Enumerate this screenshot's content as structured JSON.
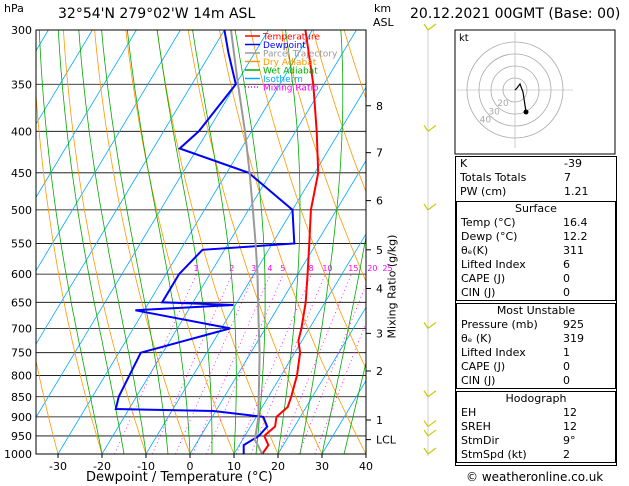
{
  "header": {
    "hpa_label": "hPa",
    "location": "32°54'N  279°02'W  14m  ASL",
    "km_label": "km",
    "asl_label": "ASL",
    "datetime": "20.12.2021  00GMT  (Base: 00)"
  },
  "footer": {
    "credit": "© weatheronline.co.uk"
  },
  "chart_data": {
    "type": "line",
    "title": "",
    "xlabel": "Dewpoint / Temperature (°C)",
    "ylabel": "hPa",
    "right_ylabel": "Mixing Ratio (g/kg)",
    "xlim": [
      -35,
      40
    ],
    "ylim": [
      1000,
      300
    ],
    "y_scale": "log",
    "x_ticks": [
      -30,
      -20,
      -10,
      0,
      10,
      20,
      30,
      40
    ],
    "pressure_levels": [
      300,
      350,
      400,
      450,
      500,
      550,
      600,
      650,
      700,
      750,
      800,
      850,
      900,
      950,
      1000
    ],
    "km_ticks": [
      {
        "label": "LCL",
        "p": 960
      },
      {
        "label": "1",
        "p": 908
      },
      {
        "label": "2",
        "p": 790
      },
      {
        "label": "3",
        "p": 710
      },
      {
        "label": "4",
        "p": 625
      },
      {
        "label": "5",
        "p": 560
      },
      {
        "label": "6",
        "p": 487
      },
      {
        "label": "7",
        "p": 425
      },
      {
        "label": "8",
        "p": 372
      }
    ],
    "mixing_ratio_labels": [
      "1",
      "2",
      "3",
      "4",
      "5",
      "8",
      "10",
      "15",
      "20",
      "25"
    ],
    "mixing_ratio_values": [
      1,
      2,
      3,
      4,
      5,
      8,
      10,
      15,
      20,
      25
    ],
    "legend": {
      "placement": "top-left",
      "entries": [
        {
          "name": "Temperature",
          "color": "#ff0000",
          "style": "solid"
        },
        {
          "name": "Dewpoint",
          "color": "#0000ff",
          "style": "solid"
        },
        {
          "name": "Parcel Trajectory",
          "color": "#999999",
          "style": "solid"
        },
        {
          "name": "Dry Adiabat",
          "color": "#ff9900",
          "style": "solid"
        },
        {
          "name": "Wet Adiabat",
          "color": "#00aa00",
          "style": "solid"
        },
        {
          "name": "Isotherm",
          "color": "#00aaff",
          "style": "solid"
        },
        {
          "name": "Mixing Ratio",
          "color": "#ff00ff",
          "style": "dotted"
        }
      ]
    },
    "series": [
      {
        "name": "Temperature",
        "color": "#ff0000",
        "points": [
          [
            1000,
            16.4
          ],
          [
            975,
            16.6
          ],
          [
            950,
            14.4
          ],
          [
            925,
            15.6
          ],
          [
            900,
            14.6
          ],
          [
            875,
            15.8
          ],
          [
            850,
            15.2
          ],
          [
            800,
            13.6
          ],
          [
            750,
            11.2
          ],
          [
            725,
            9.2
          ],
          [
            700,
            8.2
          ],
          [
            650,
            5.6
          ],
          [
            600,
            2.2
          ],
          [
            550,
            -1.6
          ],
          [
            500,
            -5.8
          ],
          [
            450,
            -9.2
          ],
          [
            400,
            -15.2
          ],
          [
            350,
            -22.4
          ],
          [
            300,
            -31.6
          ]
        ]
      },
      {
        "name": "Dewpoint",
        "color": "#0000ff",
        "points": [
          [
            1000,
            12.2
          ],
          [
            975,
            11.0
          ],
          [
            950,
            13.2
          ],
          [
            925,
            13.8
          ],
          [
            900,
            11.6
          ],
          [
            885,
            -0.5
          ],
          [
            880,
            -23.0
          ],
          [
            850,
            -24.0
          ],
          [
            800,
            -24.5
          ],
          [
            750,
            -25.0
          ],
          [
            700,
            -8.0
          ],
          [
            665,
            -32.0
          ],
          [
            655,
            -10.5
          ],
          [
            650,
            -27.0
          ],
          [
            640,
            -27.0
          ],
          [
            600,
            -27.0
          ],
          [
            560,
            -25.0
          ],
          [
            550,
            -5.0
          ],
          [
            500,
            -10.0
          ],
          [
            450,
            -25.0
          ],
          [
            420,
            -44.0
          ],
          [
            400,
            -42.0
          ],
          [
            350,
            -40.0
          ],
          [
            320,
            -46.0
          ],
          [
            300,
            -50.0
          ]
        ]
      },
      {
        "name": "Parcel Trajectory",
        "color": "#999999",
        "points": [
          [
            1000,
            16.4
          ],
          [
            960,
            12.8
          ],
          [
            900,
            10.5
          ],
          [
            850,
            7.8
          ],
          [
            800,
            5.0
          ],
          [
            750,
            2.0
          ],
          [
            700,
            -1.5
          ],
          [
            650,
            -5.2
          ],
          [
            600,
            -9.2
          ],
          [
            550,
            -13.8
          ],
          [
            500,
            -19.0
          ],
          [
            450,
            -24.8
          ],
          [
            400,
            -31.5
          ],
          [
            350,
            -39.5
          ],
          [
            300,
            -48.5
          ]
        ]
      }
    ],
    "colors": {
      "temperature": "#ff0000",
      "dewpoint": "#0000ff",
      "parcel": "#999999",
      "dry_adiabat": "#ff9900",
      "wet_adiabat": "#00aa00",
      "isotherm": "#00aaff",
      "mixing_ratio": "#ff00ff",
      "wind_barb": "#cccc00"
    },
    "wind_barb_levels": [
      1000,
      950,
      925,
      850,
      700,
      500,
      400,
      300
    ]
  },
  "hodograph": {
    "unit_label": "kt",
    "ring_labels": [
      "20",
      "30",
      "40"
    ],
    "trace": [
      [
        0,
        0
      ],
      [
        2,
        2
      ],
      [
        5,
        6
      ],
      [
        8,
        -2
      ],
      [
        11,
        -22
      ]
    ]
  },
  "indices": {
    "rows": [
      {
        "label": "K",
        "value": "-39"
      },
      {
        "label": "Totals Totals",
        "value": "7"
      },
      {
        "label": "PW (cm)",
        "value": "1.21"
      }
    ]
  },
  "surface": {
    "title": "Surface",
    "rows": [
      {
        "label": "Temp (°C)",
        "value": "16.4"
      },
      {
        "label": "Dewp (°C)",
        "value": "12.2"
      },
      {
        "label": "θₑ(K)",
        "value": "311"
      },
      {
        "label": "Lifted Index",
        "value": "6"
      },
      {
        "label": "CAPE (J)",
        "value": "0"
      },
      {
        "label": "CIN (J)",
        "value": "0"
      }
    ]
  },
  "most_unstable": {
    "title": "Most Unstable",
    "rows": [
      {
        "label": "Pressure (mb)",
        "value": "925"
      },
      {
        "label": "θₑ (K)",
        "value": "319"
      },
      {
        "label": "Lifted Index",
        "value": "1"
      },
      {
        "label": "CAPE (J)",
        "value": "0"
      },
      {
        "label": "CIN (J)",
        "value": "0"
      }
    ]
  },
  "hodograph_table": {
    "title": "Hodograph",
    "rows": [
      {
        "label": "EH",
        "value": "12"
      },
      {
        "label": "SREH",
        "value": "12"
      },
      {
        "label": "StmDir",
        "value": "9°"
      },
      {
        "label": "StmSpd (kt)",
        "value": "2"
      }
    ]
  }
}
